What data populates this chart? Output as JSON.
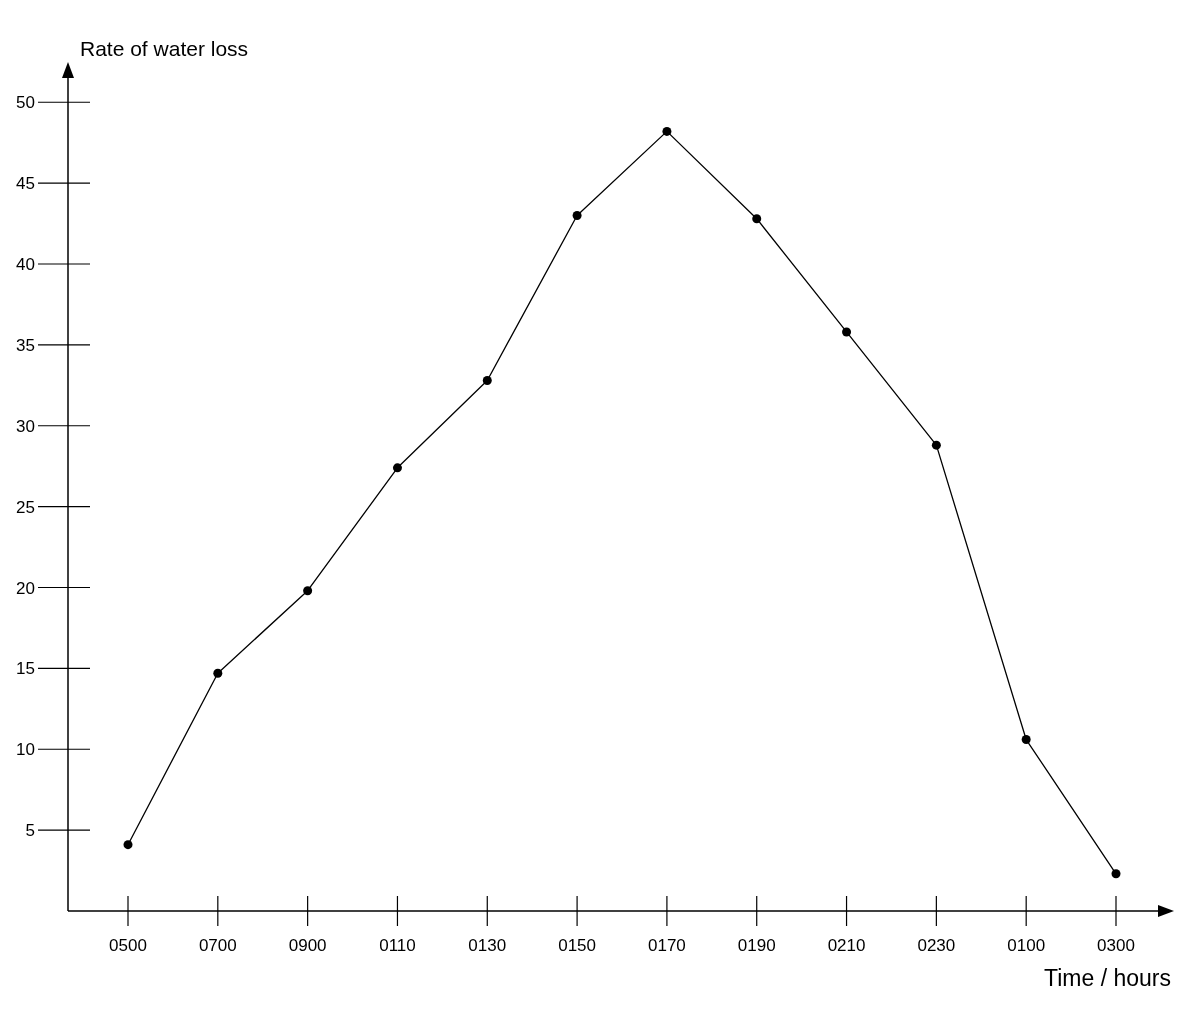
{
  "chart_data": {
    "type": "line",
    "xlabel": "Time / hours",
    "ylabel": "Rate of water loss",
    "categories": [
      "0500",
      "0700",
      "0900",
      "0110",
      "0130",
      "0150",
      "0170",
      "0190",
      "0210",
      "0230",
      "0100",
      "0300"
    ],
    "series": [
      {
        "color": "#000000",
        "values": [
          4.1,
          14.7,
          19.8,
          27.4,
          32.8,
          43,
          48.2,
          42.8,
          35.8,
          28.8,
          10.6,
          2.3
        ]
      }
    ],
    "ylim": [
      0,
      51.5
    ],
    "yticks": [
      5,
      10,
      15,
      20,
      25,
      30,
      35,
      40,
      45,
      50
    ],
    "grid": false,
    "marker": "circle",
    "line_style": "solid"
  }
}
